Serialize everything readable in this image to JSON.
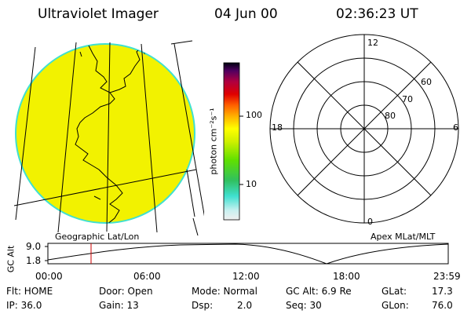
{
  "header": {
    "instrument": "Ultraviolet Imager",
    "date": "04 Jun 00",
    "time": "02:36:23 UT"
  },
  "colorbar": {
    "unit_label": "photon cm⁻²s⁻¹",
    "tick_100": "100",
    "tick_10": "10"
  },
  "geo_panel": {
    "label": "Geographic Lat/Lon",
    "fill_color": "#f2f200",
    "limb_color": "#40e0d0"
  },
  "polar_panel": {
    "label": "Apex MLat/MLT",
    "mlt_labels": {
      "top": "12",
      "bottom": "0",
      "left": "18",
      "right": "6"
    },
    "lat_labels": [
      "60",
      "70",
      "80"
    ]
  },
  "altitude_plot": {
    "ylabel": "GC Alt",
    "ytick_top": "9.0",
    "ytick_bottom": "1.8",
    "xticks": [
      "00:00",
      "06:00",
      "12:00",
      "18:00",
      "23:59"
    ],
    "current_marker_color": "#cc0000"
  },
  "info": {
    "flt": "Flt: HOME",
    "ip": "IP: 36.0",
    "door": "Door: Open",
    "gain": "Gain: 13",
    "mode": "Mode: Normal",
    "dsp": "Dsp:",
    "dsp_value": "2.0",
    "gc_alt": "GC Alt: 6.9 Re",
    "seq": "Seq: 30",
    "glat": "GLat:",
    "glat_value": "17.3",
    "glon": "GLon:",
    "glon_value": "76.0"
  }
}
